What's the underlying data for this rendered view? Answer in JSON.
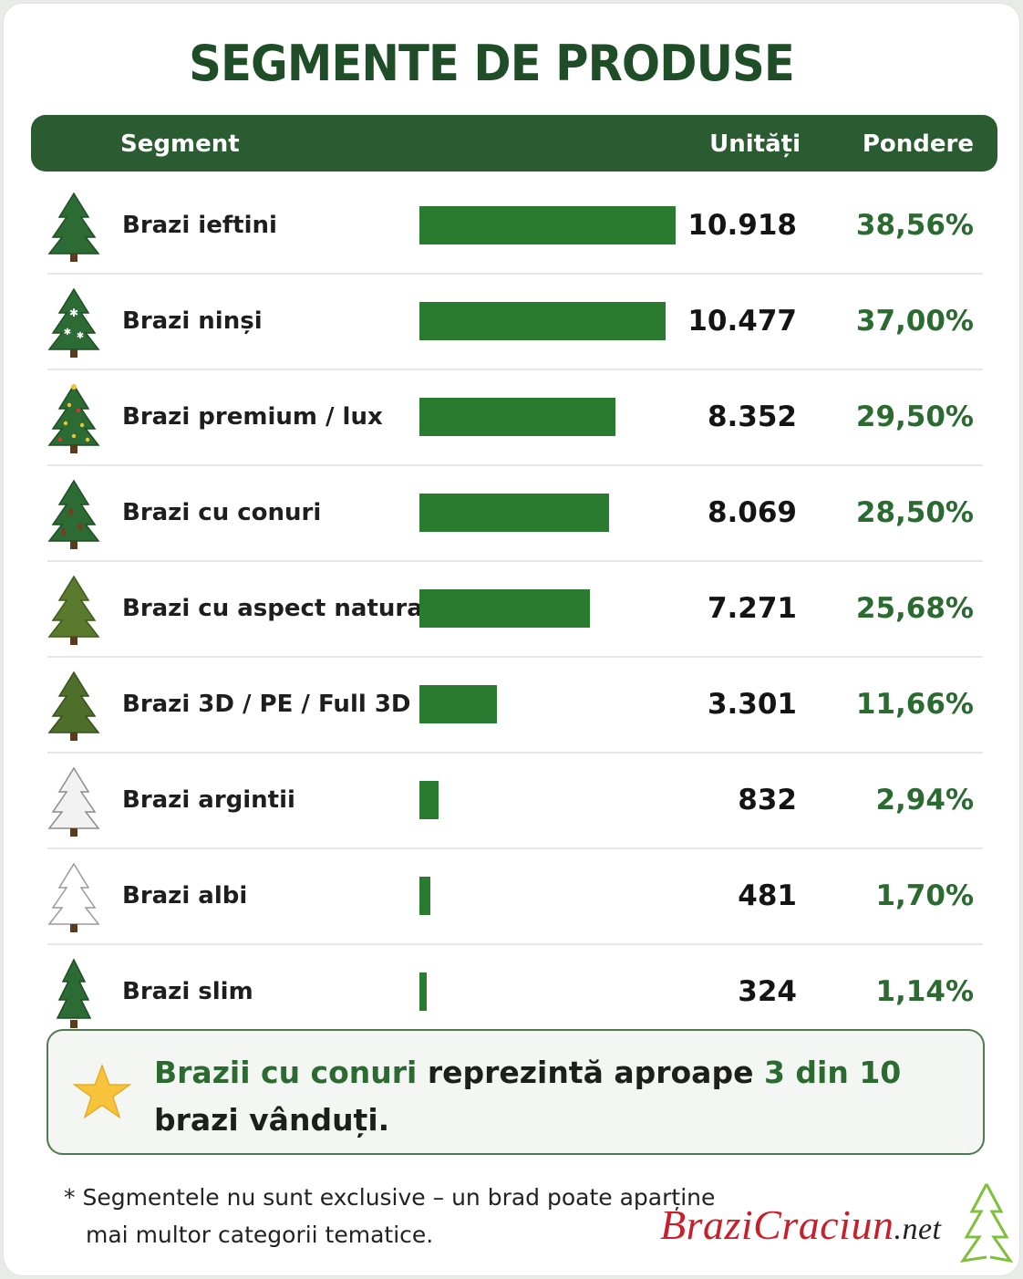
{
  "title": "SEGMENTE DE PRODUSE",
  "header": {
    "segment": "Segment",
    "units": "Unități",
    "share": "Pondere"
  },
  "chart_data": {
    "type": "bar",
    "orientation": "horizontal",
    "title": "SEGMENTE DE PRODUSE",
    "columns": [
      "Segment",
      "Unități",
      "Pondere"
    ],
    "bar_color": "#2a7a2f",
    "rows": [
      {
        "segment": "Brazi ieftini",
        "units": 10918,
        "units_label": "10.918",
        "share_pct": 38.56,
        "share_label": "38,56%",
        "icon": "green-tree-icon"
      },
      {
        "segment": "Brazi ninși",
        "units": 10477,
        "units_label": "10.477",
        "share_pct": 37.0,
        "share_label": "37,00%",
        "icon": "snowy-tree-icon"
      },
      {
        "segment": "Brazi premium / lux",
        "units": 8352,
        "units_label": "8.352",
        "share_pct": 29.5,
        "share_label": "29,50%",
        "icon": "decorated-tree-icon"
      },
      {
        "segment": "Brazi cu conuri",
        "units": 8069,
        "units_label": "8.069",
        "share_pct": 28.5,
        "share_label": "28,50%",
        "icon": "cone-tree-icon"
      },
      {
        "segment": "Brazi cu aspect natural",
        "units": 7271,
        "units_label": "7.271",
        "share_pct": 25.68,
        "share_label": "25,68%",
        "icon": "natural-tree-icon"
      },
      {
        "segment": "Brazi 3D / PE / Full 3D",
        "units": 3301,
        "units_label": "3.301",
        "share_pct": 11.66,
        "share_label": "11,66%",
        "icon": "full-3d-tree-icon"
      },
      {
        "segment": "Brazi argintii",
        "units": 832,
        "units_label": "832",
        "share_pct": 2.94,
        "share_label": "2,94%",
        "icon": "silver-tree-icon"
      },
      {
        "segment": "Brazi albi",
        "units": 481,
        "units_label": "481",
        "share_pct": 1.7,
        "share_label": "1,70%",
        "icon": "white-tree-icon"
      },
      {
        "segment": "Brazi slim",
        "units": 324,
        "units_label": "324",
        "share_pct": 1.14,
        "share_label": "1,14%",
        "icon": "slim-tree-icon"
      }
    ]
  },
  "callout": {
    "icon": "star-icon",
    "part1": "Brazii cu conuri",
    "part2": " reprezintă aproape ",
    "part3": "3 din 10",
    "part4": " brazi vânduți."
  },
  "footnote": {
    "line1": "* Segmentele nu sunt exclusive – un brad poate aparține",
    "line2": "mai multor categorii tematice."
  },
  "logo": {
    "name": "BraziCraciun",
    "tld": ".net"
  },
  "colors": {
    "dark_green": "#2b5b31",
    "bar_green": "#2a7a2f",
    "text_green": "#2b6a30",
    "logo_red": "#c8202a"
  }
}
